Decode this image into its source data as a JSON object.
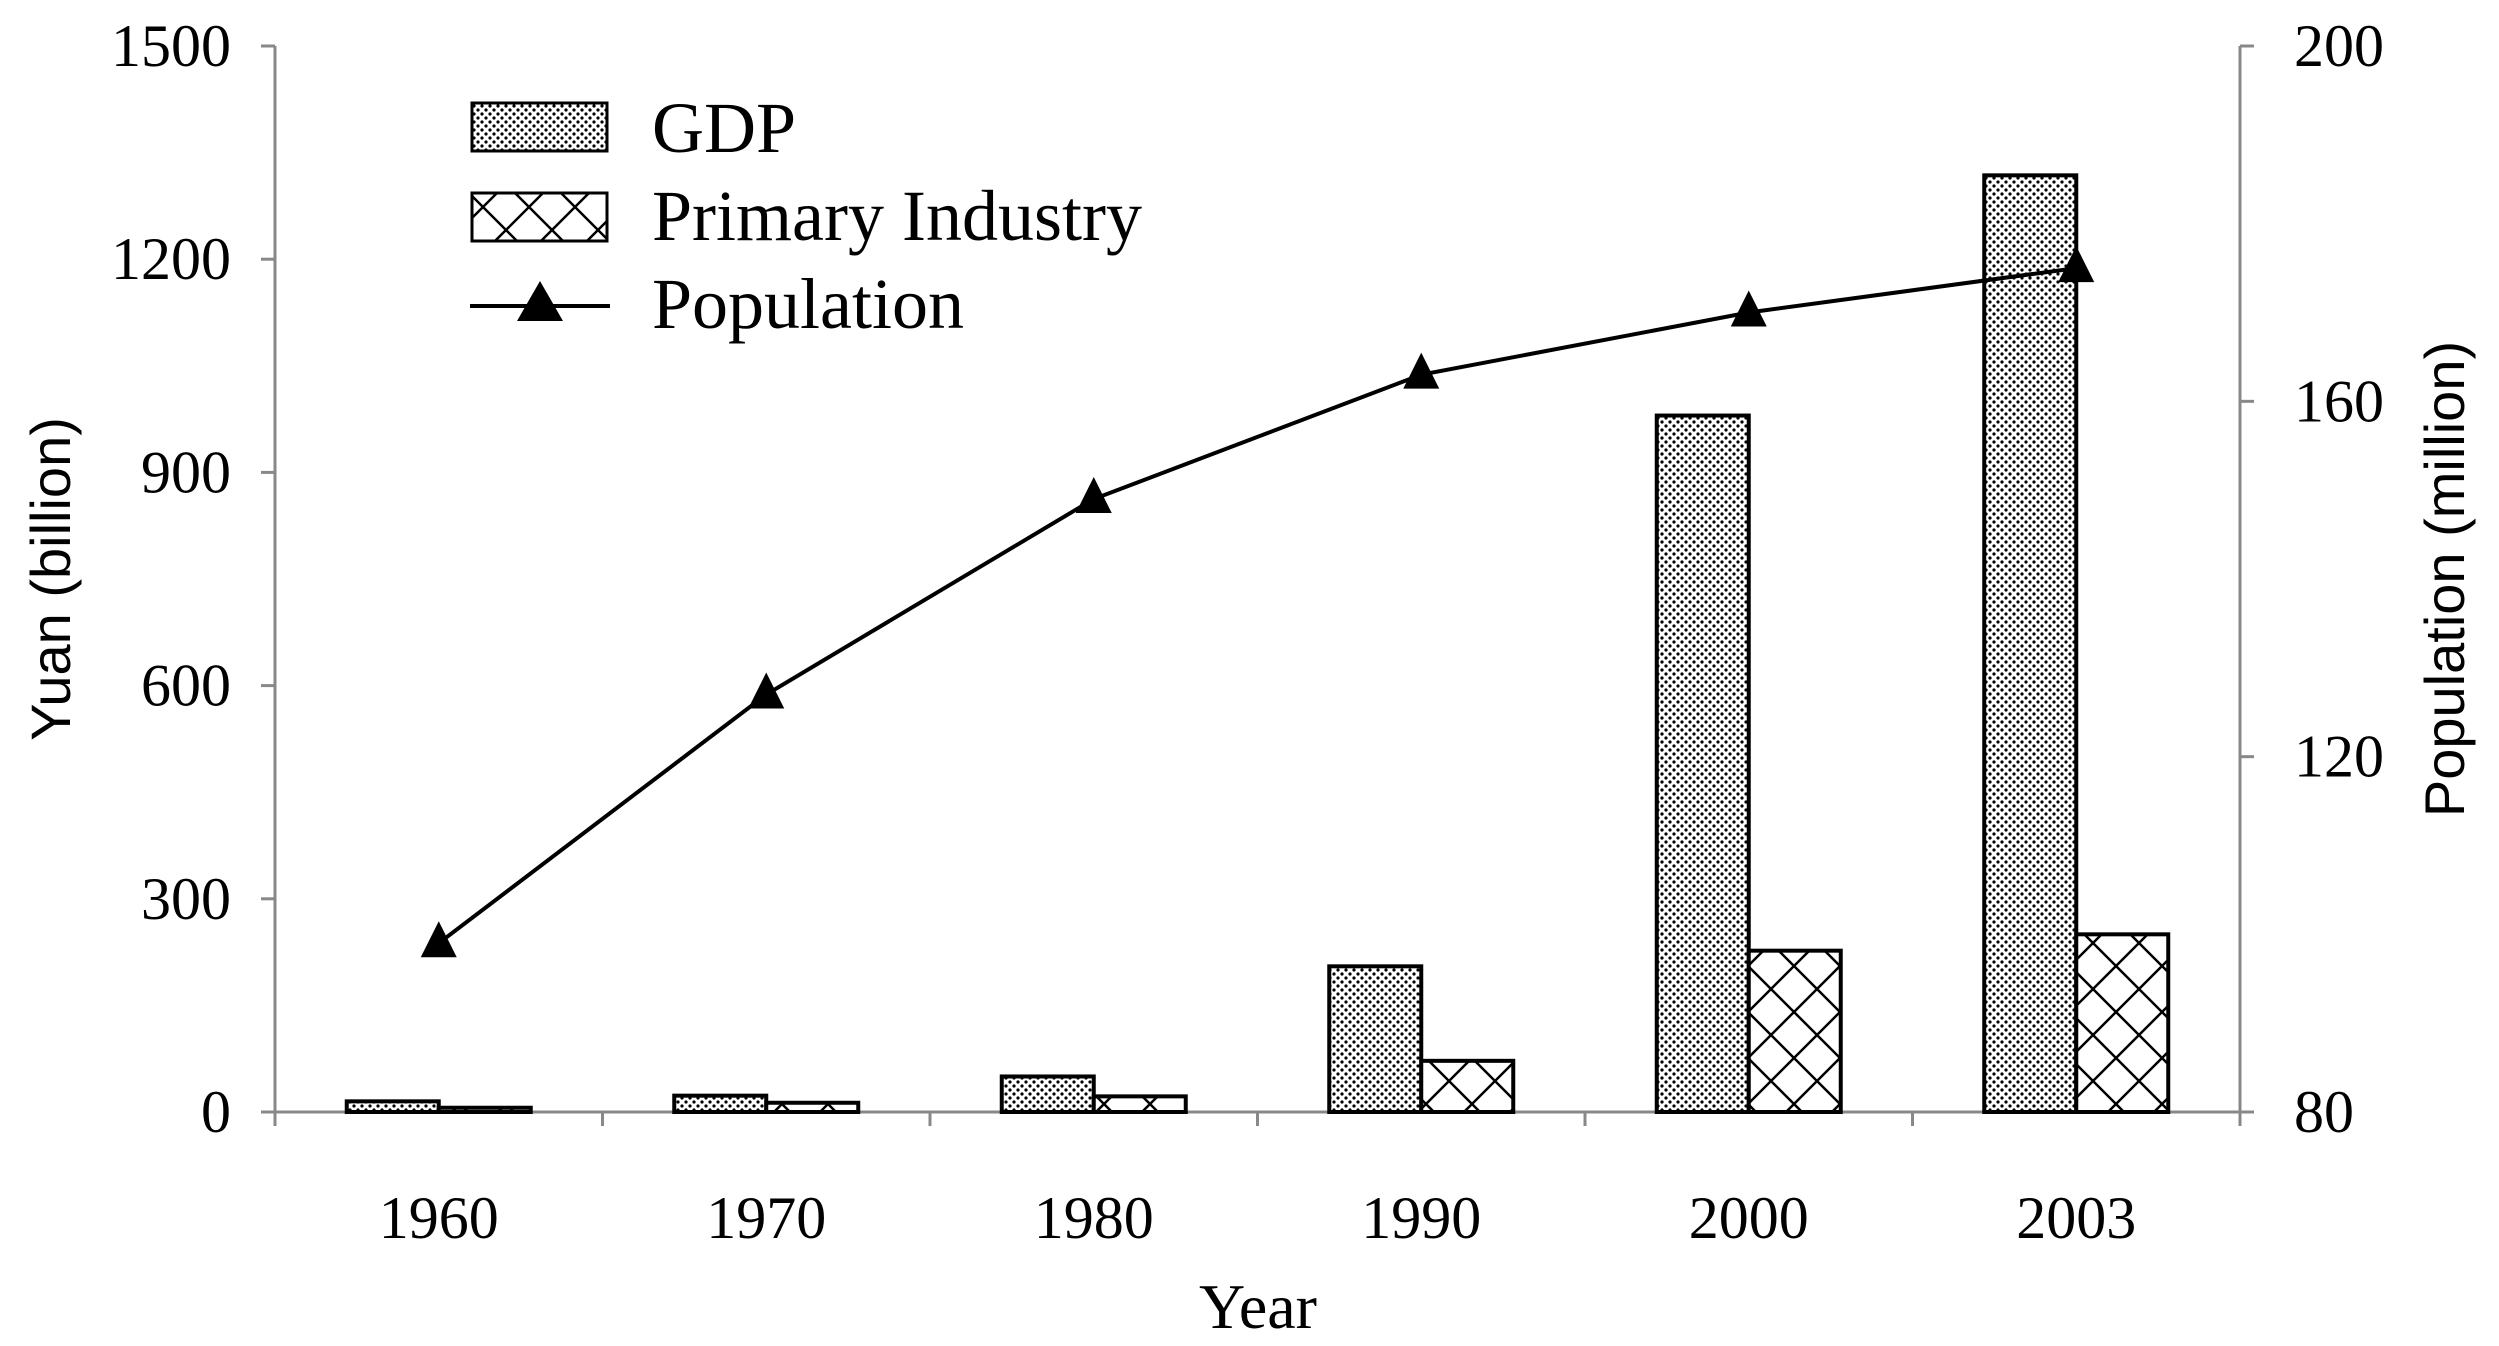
{
  "chart_data": {
    "type": "bar",
    "title": "",
    "categories": [
      "1960",
      "1970",
      "1980",
      "1990",
      "2000",
      "2003"
    ],
    "series": [
      {
        "name": "GDP",
        "kind": "bar",
        "axis": "left",
        "pattern": "dots",
        "values": [
          15,
          23,
          50,
          205,
          980,
          1318
        ]
      },
      {
        "name": "Primary Industry",
        "kind": "bar",
        "axis": "left",
        "pattern": "crosshatch",
        "values": [
          6,
          13,
          22,
          72,
          227,
          250
        ]
      },
      {
        "name": "Population",
        "kind": "line",
        "axis": "right",
        "marker": "triangle",
        "values": [
          99,
          127,
          149,
          163,
          170,
          175
        ]
      }
    ],
    "xlabel": "Year",
    "ylabel": "Yuan (billion)",
    "ylabel_right": "Population (million)",
    "ylim": [
      0,
      1500
    ],
    "ylim_right": [
      80,
      200
    ],
    "yticks": [
      "0",
      "300",
      "600",
      "900",
      "1200",
      "1500"
    ],
    "yticks_right": [
      "80",
      "120",
      "160",
      "200"
    ],
    "legend_position": "top-left",
    "grid": false
  }
}
